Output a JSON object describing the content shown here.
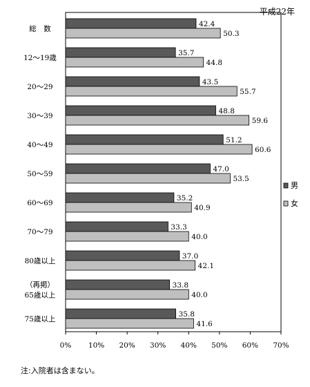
{
  "note": "注:入院者は含まない。",
  "chart_data": {
    "type": "bar",
    "orientation": "horizontal",
    "annotation": "平成22年",
    "categories": [
      [
        "総　数"
      ],
      [
        "12～19歳"
      ],
      [
        "20～29"
      ],
      [
        "30～39"
      ],
      [
        "40～49"
      ],
      [
        "50～59"
      ],
      [
        "60～69"
      ],
      [
        "70～79"
      ],
      [
        "80歳以上"
      ],
      [
        "（再掲）",
        "65歳以上"
      ],
      [
        "75歳以上"
      ]
    ],
    "series": [
      {
        "name": "男",
        "color": "#595959",
        "values": [
          42.4,
          35.7,
          43.5,
          48.8,
          51.2,
          47.0,
          35.2,
          33.3,
          37.0,
          33.8,
          35.8
        ],
        "labels": [
          "42.4",
          "35.7",
          "43.5",
          "48.8",
          "51.2",
          "47.0",
          "35.2",
          "33.3",
          "37.0",
          "33.8",
          "35.8"
        ]
      },
      {
        "name": "女",
        "color": "#bfbfbf",
        "values": [
          50.3,
          44.8,
          55.7,
          59.6,
          60.6,
          53.5,
          40.9,
          40.0,
          42.1,
          40.0,
          41.6
        ],
        "labels": [
          "50.3",
          "44.8",
          "55.7",
          "59.6",
          "60.6",
          "53.5",
          "40.9",
          "40.0",
          "42.1",
          "40.0",
          "41.6"
        ]
      }
    ],
    "xlim": [
      0,
      70
    ],
    "ticks": [
      0,
      10,
      20,
      30,
      40,
      50,
      60,
      70
    ],
    "tick_labels": [
      "0%",
      "10%",
      "20%",
      "30%",
      "40%",
      "50%",
      "60%",
      "70%"
    ],
    "legend_position": "right",
    "grid": false
  }
}
